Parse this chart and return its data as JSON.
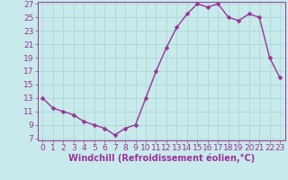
{
  "hours": [
    0,
    1,
    2,
    3,
    4,
    5,
    6,
    7,
    8,
    9,
    10,
    11,
    12,
    13,
    14,
    15,
    16,
    17,
    18,
    19,
    20,
    21,
    22,
    23
  ],
  "values": [
    13.0,
    11.5,
    11.0,
    10.5,
    9.5,
    9.0,
    8.5,
    7.5,
    8.5,
    9.0,
    13.0,
    17.0,
    20.5,
    23.5,
    25.5,
    27.0,
    26.5,
    27.0,
    25.0,
    24.5,
    25.5,
    25.0,
    19.0,
    16.0
  ],
  "line_color": "#993399",
  "marker": "D",
  "marker_size": 2.5,
  "bg_color": "#c8eaea",
  "grid_color": "#b0dada",
  "axis_color": "#993399",
  "tick_color": "#993399",
  "xlabel": "Windchill (Refroidissement éolien,°C)",
  "ylim_min": 7,
  "ylim_max": 27,
  "xlim_min": 0,
  "xlim_max": 23,
  "yticks": [
    7,
    9,
    11,
    13,
    15,
    17,
    19,
    21,
    23,
    25,
    27
  ],
  "xticks": [
    0,
    1,
    2,
    3,
    4,
    5,
    6,
    7,
    8,
    9,
    10,
    11,
    12,
    13,
    14,
    15,
    16,
    17,
    18,
    19,
    20,
    21,
    22,
    23
  ],
  "fontsize": 6.5,
  "xlabel_fontsize": 7,
  "line_width": 1.0
}
